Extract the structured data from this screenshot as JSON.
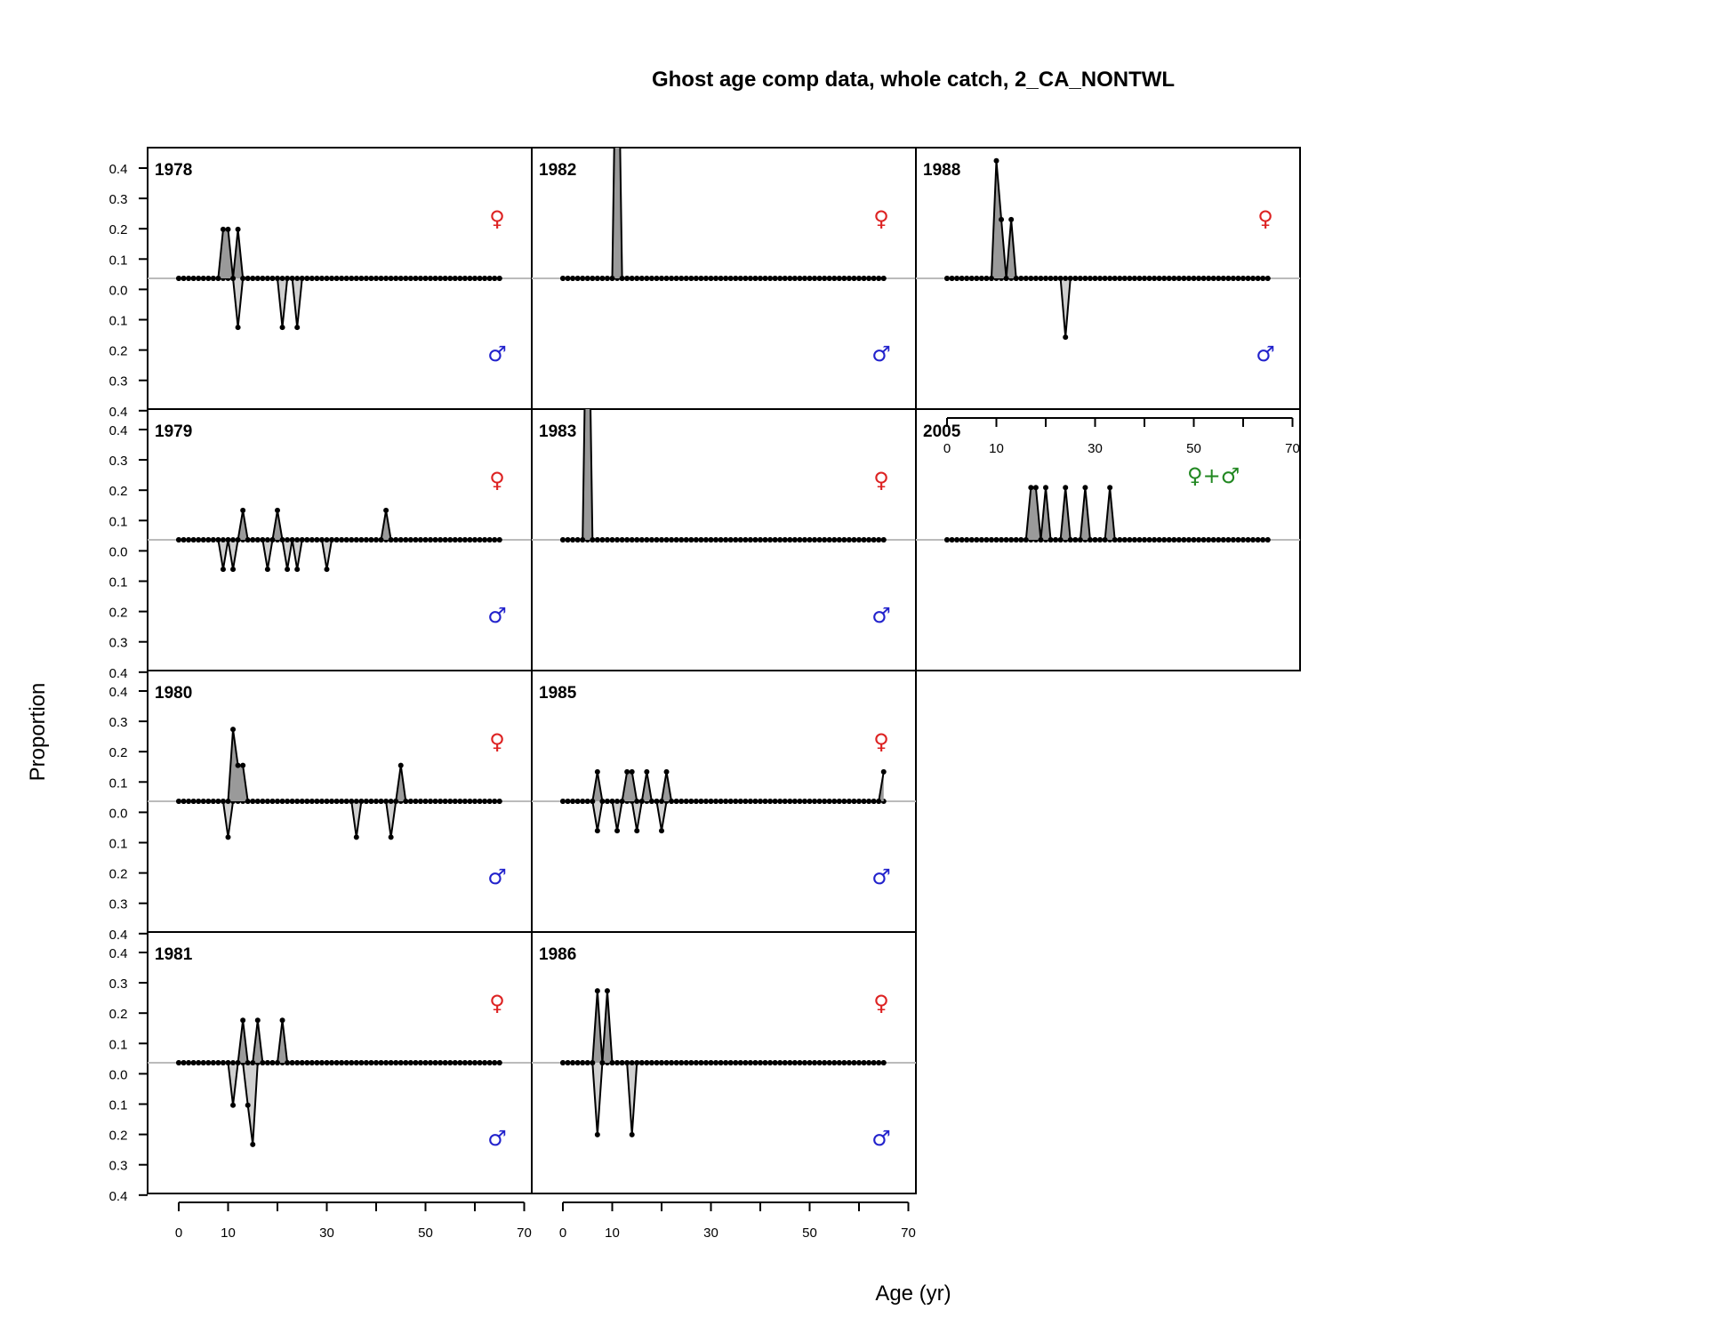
{
  "chart_data": {
    "type": "line",
    "title": "Ghost age comp data, whole catch, 2_CA_NONTWL",
    "xlabel": "Age (yr)",
    "ylabel": "Proportion",
    "x_ticks": [
      0,
      10,
      30,
      50,
      70
    ],
    "y_tick_labels": [
      "0.4",
      "0.3",
      "0.2",
      "0.1",
      "0.0",
      "0.1",
      "0.2",
      "0.3",
      "0.4"
    ],
    "xlim": [
      0,
      65
    ],
    "ylim": [
      -0.4,
      0.4
    ],
    "symbols": {
      "female": "♀",
      "male": "♂",
      "combined": "♀+♂",
      "female_color": "#dd2222",
      "male_color": "#2222cc",
      "combined_color": "#228822"
    },
    "colors": {
      "fill": "#9a9a9a",
      "fill_male": "#d0d0d0",
      "zero_line": "#bbbbbb"
    },
    "panels": [
      {
        "year": "1978",
        "female": {
          "9": 0.15,
          "10": 0.15,
          "12": 0.15
        },
        "male": {
          "12": 0.15,
          "21": 0.15,
          "24": 0.15
        }
      },
      {
        "year": "1979",
        "female": {
          "13": 0.09,
          "20": 0.09,
          "42": 0.09
        },
        "male": {
          "9": 0.09,
          "11": 0.09,
          "18": 0.09,
          "22": 0.09,
          "24": 0.09,
          "30": 0.09
        }
      },
      {
        "year": "1980",
        "female": {
          "11": 0.22,
          "12": 0.11,
          "13": 0.11,
          "45": 0.11
        },
        "male": {
          "10": 0.11,
          "36": 0.11,
          "43": 0.11
        }
      },
      {
        "year": "1981",
        "female": {
          "13": 0.13,
          "16": 0.13,
          "21": 0.13
        },
        "male": {
          "11": 0.13,
          "14": 0.13,
          "15": 0.25
        }
      },
      {
        "year": "1982",
        "female": {
          "11": 1.0
        },
        "male": {}
      },
      {
        "year": "1983",
        "female": {
          "5": 1.0
        },
        "male": {}
      },
      {
        "year": "1985",
        "female": {
          "7": 0.09,
          "13": 0.09,
          "14": 0.09,
          "17": 0.09,
          "21": 0.09,
          "65": 0.09
        },
        "male": {
          "7": 0.09,
          "11": 0.09,
          "15": 0.09,
          "20": 0.09
        }
      },
      {
        "year": "1986",
        "female": {
          "7": 0.22,
          "9": 0.22
        },
        "male": {
          "7": 0.22,
          "14": 0.22
        }
      },
      {
        "year": "1988",
        "female": {
          "10": 0.36,
          "11": 0.18,
          "13": 0.18
        },
        "male": {
          "24": 0.18
        }
      },
      {
        "year": "2005",
        "combined": true,
        "female": {
          "17": 0.16,
          "18": 0.16,
          "20": 0.16,
          "24": 0.16,
          "28": 0.16,
          "33": 0.16
        },
        "male": {}
      }
    ]
  }
}
